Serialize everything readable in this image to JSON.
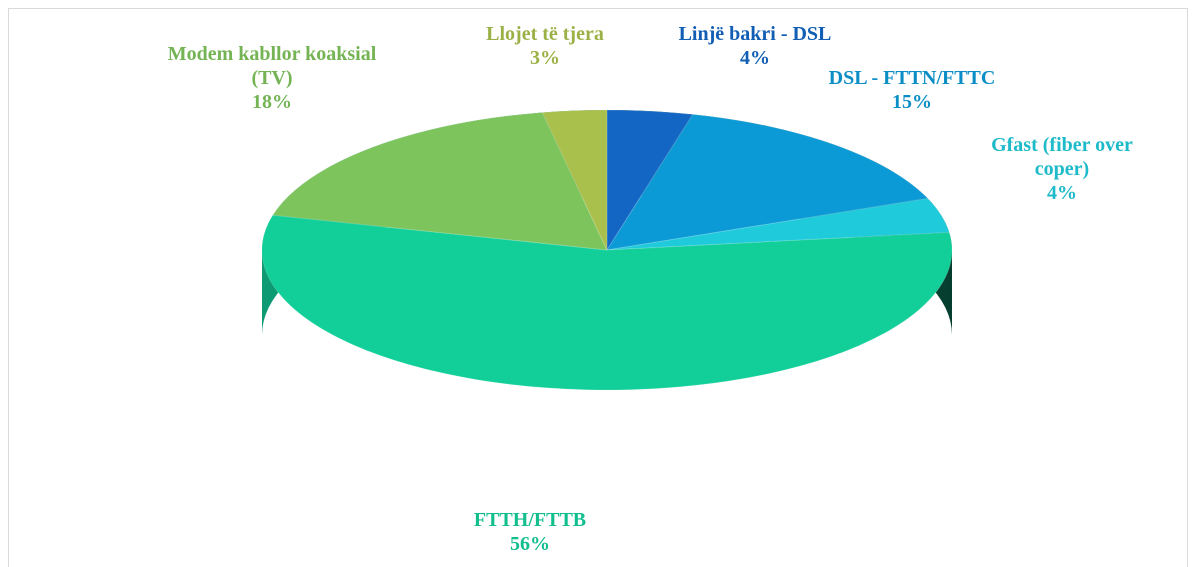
{
  "chart_data": {
    "type": "pie",
    "categories": [
      "Linjë bakri - DSL",
      "DSL - FTTN/FTTC",
      "Gfast (fiber over coper)",
      "FTTH/FTTB",
      "Modem kabllor koaksial (TV)",
      "Llojet të tjera"
    ],
    "values": [
      4,
      15,
      4,
      56,
      18,
      3
    ],
    "value_labels": [
      "4%",
      "15%",
      "4%",
      "56%",
      "18%",
      "3%"
    ],
    "colors": [
      "#1366c4",
      "#0c9ad6",
      "#1fcadb",
      "#12cf9a",
      "#7ec45c",
      "#a9c04c"
    ]
  }
}
